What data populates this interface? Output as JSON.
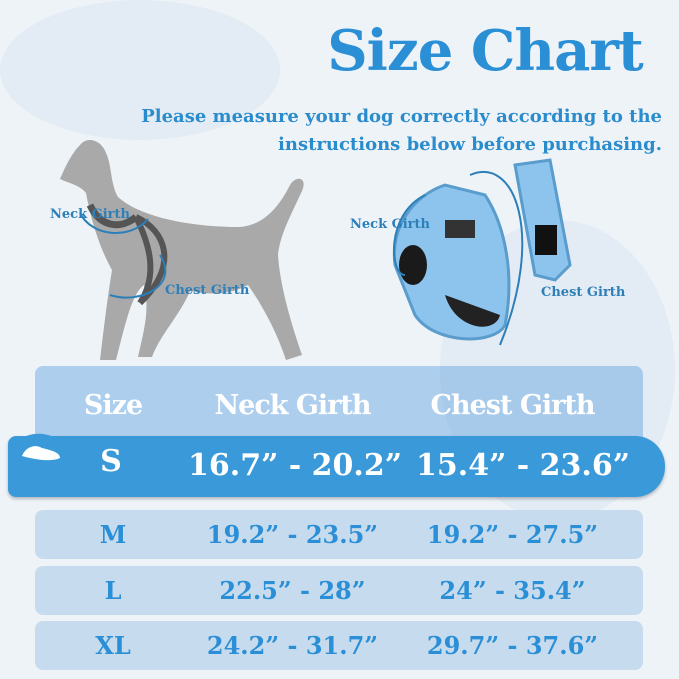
{
  "title": "Size Chart",
  "subtitle": [
    "Please measure your dog correctly according to the",
    "instructions below before purchasing."
  ],
  "dog_labels": {
    "neck": "Neck Girth",
    "chest": "Chest Girth"
  },
  "harness_labels": {
    "neck": "Neck Girth",
    "chest": "Chest Girth"
  },
  "table": {
    "headers": [
      "Size",
      "Neck Girth",
      "Chest Girth"
    ],
    "rows": [
      {
        "size": "S",
        "neck": "16.7” - 20.2”",
        "chest": "15.4” - 23.6”",
        "highlighted": true
      },
      {
        "size": "M",
        "neck": "19.2” - 23.5”",
        "chest": "19.2” - 27.5”"
      },
      {
        "size": "L",
        "neck": "22.5” - 28”",
        "chest": "24” - 35.4”"
      },
      {
        "size": "XL",
        "neck": "24.2” - 31.7”",
        "chest": "29.7” - 37.6”"
      }
    ]
  },
  "colors": {
    "accent": "#2b8fd6",
    "highlight_row": "#3a9ad9",
    "row_bg": "#c6dbed",
    "dog": "#a9a9a9"
  }
}
